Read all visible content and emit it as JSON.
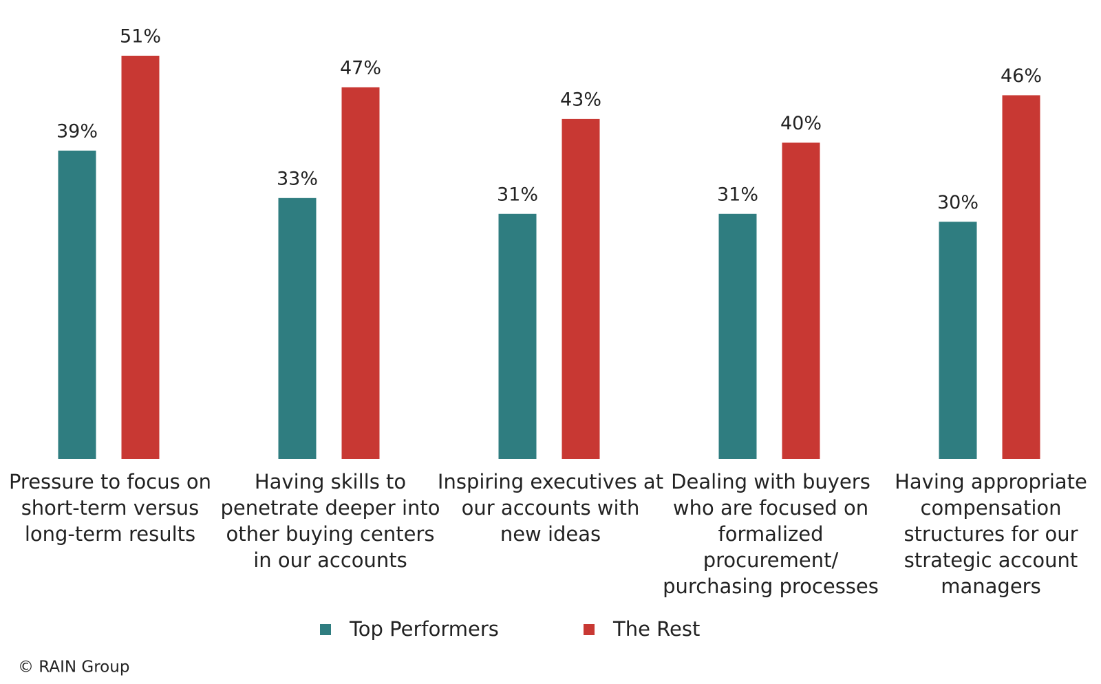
{
  "chart_data": {
    "type": "bar",
    "categories": [
      [
        "Pressure to focus on",
        "short-term versus",
        "long-term results"
      ],
      [
        "Having skills to",
        "penetrate deeper into",
        "other buying centers",
        "in our accounts"
      ],
      [
        "Inspiring executives at",
        "our accounts with",
        "new ideas"
      ],
      [
        "Dealing with buyers",
        "who are focused on",
        "formalized",
        "procurement/",
        "purchasing processes"
      ],
      [
        "Having appropriate",
        "compensation",
        "structures for our",
        "strategic account",
        "managers"
      ]
    ],
    "series": [
      {
        "name": "Top Performers",
        "color": "#2f7d80",
        "values": [
          39,
          33,
          31,
          31,
          30
        ],
        "value_labels": [
          "39%",
          "33%",
          "31%",
          "31%",
          "30%"
        ]
      },
      {
        "name": "The Rest",
        "color": "#c83833",
        "values": [
          51,
          47,
          43,
          40,
          46
        ],
        "value_labels": [
          "51%",
          "47%",
          "43%",
          "40%",
          "46%"
        ]
      }
    ],
    "ylim": [
      0,
      55
    ],
    "source": "© RAIN Group"
  }
}
